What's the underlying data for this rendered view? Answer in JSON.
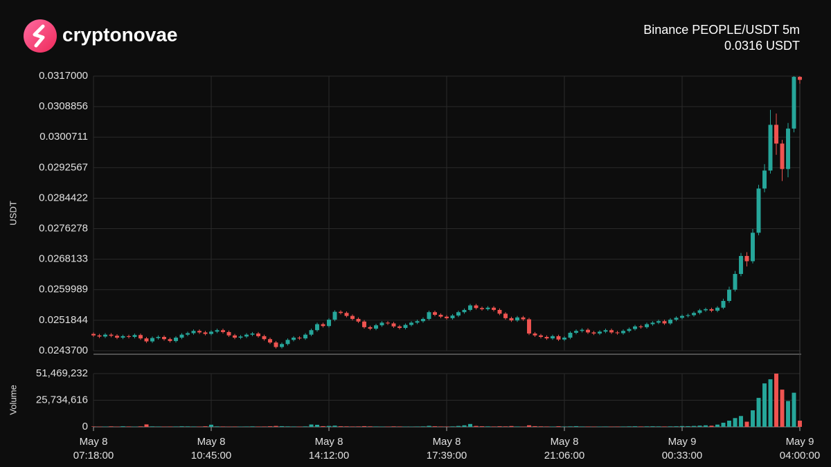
{
  "brand": "cryptonovae",
  "chart_data": {
    "type": "candlestick",
    "title": "Binance PEOPLE/USDT 5m",
    "subtitle": "0.0316 USDT",
    "ylabel": "USDT",
    "up_color": "#26a69a",
    "down_color": "#ef5350",
    "grid": true,
    "xlim": [
      0,
      120
    ],
    "xticks": [
      {
        "value": 0,
        "label": "May  8\n07:18:00"
      },
      {
        "value": 20,
        "label": "May  8\n10:45:00"
      },
      {
        "value": 40,
        "label": "May  8\n14:12:00"
      },
      {
        "value": 60,
        "label": "May  8\n17:39:00"
      },
      {
        "value": 80,
        "label": "May  8\n21:06:00"
      },
      {
        "value": 100,
        "label": "May  9\n00:33:00"
      },
      {
        "value": 120,
        "label": "May  9\n04:00:00"
      }
    ],
    "ylim": [
      0.02437,
      0.0317
    ],
    "yticks": [
      {
        "value": 0.02437,
        "label": "0.0243700"
      },
      {
        "value": 0.0251844,
        "label": "0.0251844"
      },
      {
        "value": 0.0259989,
        "label": "0.0259989"
      },
      {
        "value": 0.0268133,
        "label": "0.0268133"
      },
      {
        "value": 0.0276278,
        "label": "0.0276278"
      },
      {
        "value": 0.0284422,
        "label": "0.0284422"
      },
      {
        "value": 0.0292567,
        "label": "0.0292567"
      },
      {
        "value": 0.0300711,
        "label": "0.0300711"
      },
      {
        "value": 0.0308856,
        "label": "0.0308856"
      },
      {
        "value": 0.0317,
        "label": "0.0317000"
      }
    ],
    "open": [
      0.02482,
      0.02478,
      0.02475,
      0.0248,
      0.02477,
      0.02472,
      0.02476,
      0.02474,
      0.02479,
      0.0247,
      0.02462,
      0.02471,
      0.02474,
      0.02468,
      0.02463,
      0.02472,
      0.0248,
      0.02484,
      0.0249,
      0.02486,
      0.02482,
      0.02488,
      0.02492,
      0.02487,
      0.02478,
      0.02472,
      0.02475,
      0.0248,
      0.02483,
      0.02476,
      0.02468,
      0.02459,
      0.02447,
      0.02455,
      0.02466,
      0.02472,
      0.0247,
      0.0248,
      0.02492,
      0.02508,
      0.02503,
      0.0252,
      0.02541,
      0.02538,
      0.0253,
      0.02522,
      0.02515,
      0.025,
      0.02496,
      0.02505,
      0.02512,
      0.0251,
      0.02502,
      0.02498,
      0.02506,
      0.02512,
      0.02516,
      0.02522,
      0.0254,
      0.02533,
      0.02528,
      0.02524,
      0.02531,
      0.0254,
      0.02546,
      0.02558,
      0.02551,
      0.02548,
      0.02552,
      0.02546,
      0.02536,
      0.02524,
      0.02518,
      0.02526,
      0.02521,
      0.02483,
      0.02478,
      0.02474,
      0.0247,
      0.02476,
      0.02467,
      0.02472,
      0.02485,
      0.0249,
      0.02493,
      0.02486,
      0.02483,
      0.02488,
      0.02492,
      0.02486,
      0.02484,
      0.0249,
      0.02495,
      0.02502,
      0.025,
      0.02508,
      0.02512,
      0.02516,
      0.0251,
      0.0252,
      0.02525,
      0.0253,
      0.02532,
      0.02538,
      0.02545,
      0.02548,
      0.02544,
      0.02552,
      0.0257,
      0.026,
      0.02642,
      0.0269,
      0.02676,
      0.02752,
      0.0287,
      0.02918,
      0.0304,
      0.0299,
      0.02922,
      0.0303,
      0.03168
    ],
    "high": [
      0.02486,
      0.02482,
      0.02484,
      0.02484,
      0.02481,
      0.0248,
      0.0248,
      0.02483,
      0.02483,
      0.02474,
      0.02475,
      0.02478,
      0.02478,
      0.02472,
      0.02476,
      0.02484,
      0.02488,
      0.02494,
      0.02494,
      0.0249,
      0.02492,
      0.02496,
      0.02496,
      0.02491,
      0.02482,
      0.02479,
      0.02484,
      0.02487,
      0.02487,
      0.0248,
      0.02472,
      0.02463,
      0.02459,
      0.0247,
      0.02476,
      0.02476,
      0.02484,
      0.02496,
      0.02512,
      0.02512,
      0.02524,
      0.02545,
      0.02545,
      0.02542,
      0.02534,
      0.02526,
      0.02519,
      0.02504,
      0.02509,
      0.02516,
      0.02516,
      0.02514,
      0.02506,
      0.0251,
      0.02516,
      0.0252,
      0.02526,
      0.02544,
      0.02544,
      0.02537,
      0.02532,
      0.02535,
      0.02544,
      0.0255,
      0.02562,
      0.02562,
      0.02555,
      0.02556,
      0.02556,
      0.0255,
      0.0254,
      0.02528,
      0.0253,
      0.0253,
      0.02525,
      0.02487,
      0.02482,
      0.02478,
      0.0248,
      0.0248,
      0.02476,
      0.02489,
      0.02494,
      0.02497,
      0.02497,
      0.0249,
      0.02492,
      0.02496,
      0.02496,
      0.0249,
      0.02494,
      0.02499,
      0.02506,
      0.02506,
      0.02512,
      0.02516,
      0.0252,
      0.0252,
      0.02524,
      0.02529,
      0.02534,
      0.02536,
      0.02542,
      0.02549,
      0.02552,
      0.02552,
      0.02556,
      0.02576,
      0.02608,
      0.0265,
      0.02698,
      0.027,
      0.02762,
      0.0288,
      0.02935,
      0.0308,
      0.0307,
      0.03,
      0.03045,
      0.0317,
      0.0317
    ],
    "low": [
      0.02474,
      0.02471,
      0.02471,
      0.02473,
      0.02468,
      0.02468,
      0.0247,
      0.0247,
      0.02466,
      0.02458,
      0.02458,
      0.02467,
      0.02464,
      0.02459,
      0.02459,
      0.02468,
      0.02476,
      0.0248,
      0.02482,
      0.02478,
      0.02478,
      0.02484,
      0.02483,
      0.02474,
      0.02468,
      0.02468,
      0.02471,
      0.02476,
      0.02472,
      0.02464,
      0.02455,
      0.02443,
      0.02443,
      0.02451,
      0.02462,
      0.02466,
      0.02466,
      0.02476,
      0.02488,
      0.02499,
      0.02499,
      0.02516,
      0.02534,
      0.02526,
      0.02518,
      0.02511,
      0.02496,
      0.02492,
      0.02492,
      0.02501,
      0.02506,
      0.02498,
      0.02494,
      0.02494,
      0.02502,
      0.02508,
      0.02512,
      0.02518,
      0.02529,
      0.02524,
      0.0252,
      0.0252,
      0.02527,
      0.02536,
      0.02542,
      0.02547,
      0.02544,
      0.02544,
      0.02542,
      0.02532,
      0.0252,
      0.02514,
      0.02514,
      0.02517,
      0.02479,
      0.02474,
      0.0247,
      0.02466,
      0.02466,
      0.02463,
      0.02463,
      0.02468,
      0.02481,
      0.02486,
      0.02482,
      0.02479,
      0.02479,
      0.02484,
      0.02482,
      0.0248,
      0.0248,
      0.02486,
      0.02491,
      0.02496,
      0.02496,
      0.02504,
      0.02508,
      0.02506,
      0.02506,
      0.02516,
      0.02521,
      0.02526,
      0.02528,
      0.02534,
      0.02541,
      0.0254,
      0.0254,
      0.02548,
      0.02565,
      0.02595,
      0.02636,
      0.02662,
      0.0267,
      0.02745,
      0.0286,
      0.0291,
      0.0296,
      0.0289,
      0.029,
      0.0302,
      0.0315
    ],
    "close": [
      0.02478,
      0.02475,
      0.0248,
      0.02477,
      0.02472,
      0.02476,
      0.02474,
      0.02479,
      0.0247,
      0.02462,
      0.02471,
      0.02474,
      0.02468,
      0.02463,
      0.02472,
      0.0248,
      0.02484,
      0.0249,
      0.02486,
      0.02482,
      0.02488,
      0.02492,
      0.02487,
      0.02478,
      0.02472,
      0.02475,
      0.0248,
      0.02483,
      0.02476,
      0.02468,
      0.02459,
      0.02447,
      0.02455,
      0.02466,
      0.02472,
      0.0247,
      0.0248,
      0.02492,
      0.02508,
      0.02503,
      0.0252,
      0.02541,
      0.02538,
      0.0253,
      0.02522,
      0.02515,
      0.025,
      0.02496,
      0.02505,
      0.02512,
      0.0251,
      0.02502,
      0.02498,
      0.02506,
      0.02512,
      0.02516,
      0.02522,
      0.0254,
      0.02533,
      0.02528,
      0.02524,
      0.02531,
      0.0254,
      0.02546,
      0.02558,
      0.02551,
      0.02548,
      0.02552,
      0.02546,
      0.02536,
      0.02524,
      0.02518,
      0.02526,
      0.02521,
      0.02483,
      0.02478,
      0.02474,
      0.0247,
      0.02476,
      0.02467,
      0.02472,
      0.02485,
      0.0249,
      0.02493,
      0.02486,
      0.02483,
      0.02488,
      0.02492,
      0.02486,
      0.02484,
      0.0249,
      0.02495,
      0.02502,
      0.025,
      0.02508,
      0.02512,
      0.02516,
      0.0251,
      0.0252,
      0.02525,
      0.0253,
      0.02532,
      0.02538,
      0.02545,
      0.02548,
      0.02544,
      0.02552,
      0.0257,
      0.026,
      0.02642,
      0.0269,
      0.02676,
      0.02752,
      0.0287,
      0.02918,
      0.0304,
      0.0299,
      0.02922,
      0.0303,
      0.03168,
      0.0316
    ],
    "volume": {
      "label": "Volume",
      "ylim": [
        0,
        51469232
      ],
      "yticks": [
        0,
        {
          "value": 25734616,
          "label": "25,734,616"
        },
        {
          "value": 51469232,
          "label": "51,469,232"
        }
      ],
      "values": [
        400000,
        300000,
        350000,
        500000,
        300000,
        600000,
        400000,
        300000,
        500000,
        2400000,
        500000,
        400000,
        300000,
        350000,
        400000,
        600000,
        500000,
        400000,
        300000,
        600000,
        2100000,
        500000,
        400000,
        300000,
        350000,
        300000,
        400000,
        500000,
        350000,
        400000,
        600000,
        900000,
        700000,
        500000,
        400000,
        300000,
        500000,
        2300000,
        2000000,
        700000,
        900000,
        1200000,
        600000,
        500000,
        400000,
        450000,
        700000,
        500000,
        400000,
        350000,
        300000,
        500000,
        400000,
        350000,
        300000,
        400000,
        500000,
        1000000,
        600000,
        400000,
        350000,
        500000,
        900000,
        1500000,
        2800000,
        900000,
        600000,
        500000,
        400000,
        600000,
        500000,
        800000,
        400000,
        300000,
        1500000,
        700000,
        500000,
        400000,
        350000,
        600000,
        400000,
        500000,
        700000,
        400000,
        350000,
        300000,
        350000,
        400000,
        300000,
        350000,
        400000,
        500000,
        600000,
        400000,
        500000,
        600000,
        500000,
        400000,
        500000,
        600000,
        800000,
        700000,
        900000,
        1200000,
        1500000,
        1100000,
        2200000,
        4000000,
        6000000,
        8500000,
        10500000,
        5000000,
        16000000,
        28000000,
        42000000,
        46000000,
        51469232,
        36000000,
        25000000,
        33000000,
        6000000
      ]
    }
  }
}
